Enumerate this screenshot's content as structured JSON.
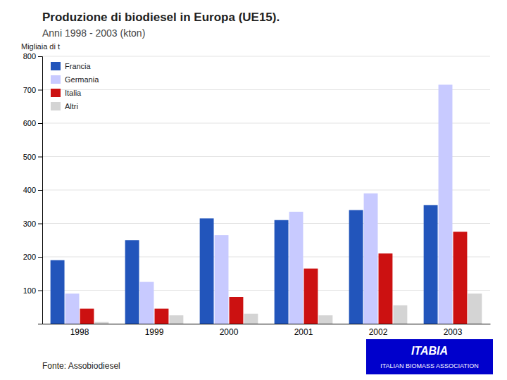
{
  "chart_data": {
    "type": "bar",
    "title": "Produzione di biodiesel in Europa (UE15).",
    "subtitle": "Anni 1998 - 2003 (kton)",
    "ylabel": "Migliaia di t",
    "annotations": [
      "Fonte: Assobiodiesel",
      "ITABIA",
      "ITALIAN BIOMASS ASSOCIATION"
    ],
    "categories": [
      "1998",
      "1999",
      "2000",
      "2001",
      "2002",
      "2003"
    ],
    "series": [
      {
        "name": "Francia",
        "color": "#2255bb",
        "values": [
          190,
          250,
          315,
          310,
          340,
          355
        ]
      },
      {
        "name": "Germania",
        "color": "#c8caff",
        "values": [
          90,
          125,
          265,
          335,
          390,
          715
        ]
      },
      {
        "name": "Italia",
        "color": "#cc1111",
        "values": [
          45,
          45,
          80,
          165,
          210,
          275
        ]
      },
      {
        "name": "Altri",
        "color": "#d4d4d4",
        "values": [
          5,
          25,
          30,
          25,
          55,
          90
        ]
      }
    ],
    "ylim": [
      0,
      800
    ],
    "yticks": [
      100,
      200,
      300,
      400,
      500,
      600,
      700,
      800
    ],
    "grid": true,
    "legend": "top-left"
  }
}
